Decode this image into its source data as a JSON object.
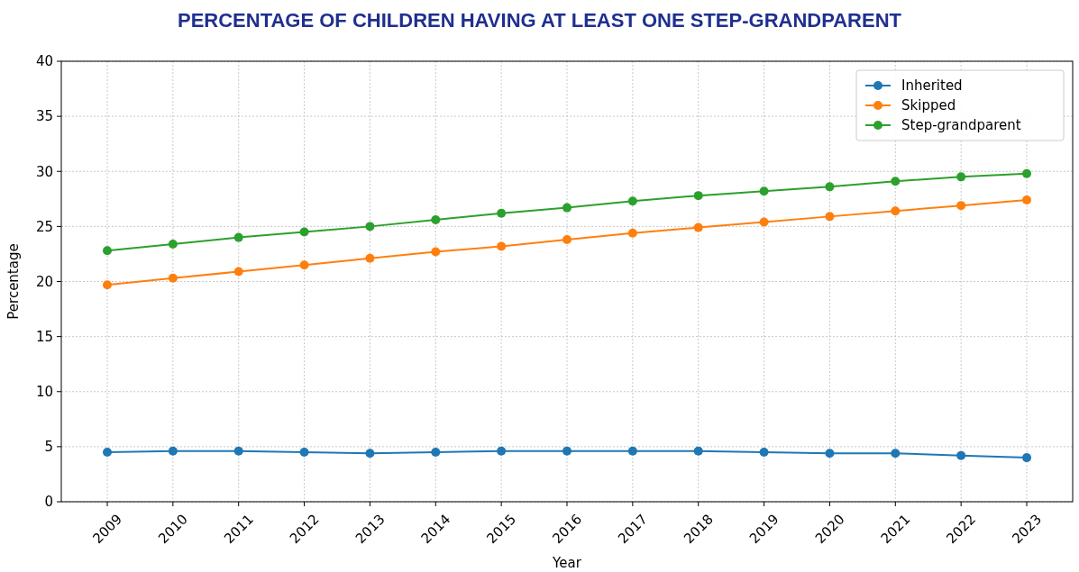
{
  "chart_data": {
    "type": "line",
    "title": "PERCENTAGE OF CHILDREN HAVING AT LEAST ONE STEP-GRANDPARENT",
    "xlabel": "Year",
    "ylabel": "Percentage",
    "categories": [
      "2009",
      "2010",
      "2011",
      "2012",
      "2013",
      "2014",
      "2015",
      "2016",
      "2017",
      "2018",
      "2019",
      "2020",
      "2021",
      "2022",
      "2023"
    ],
    "series": [
      {
        "name": "Inherited",
        "color": "#1f77b4",
        "values": [
          4.5,
          4.6,
          4.6,
          4.5,
          4.4,
          4.5,
          4.6,
          4.6,
          4.6,
          4.6,
          4.5,
          4.4,
          4.4,
          4.2,
          4.0
        ]
      },
      {
        "name": "Skipped",
        "color": "#ff7f0e",
        "values": [
          19.7,
          20.3,
          20.9,
          21.5,
          22.1,
          22.7,
          23.2,
          23.8,
          24.4,
          24.9,
          25.4,
          25.9,
          26.4,
          26.9,
          27.4
        ]
      },
      {
        "name": "Step-grandparent",
        "color": "#2ca02c",
        "values": [
          22.8,
          23.4,
          24.0,
          24.5,
          25.0,
          25.6,
          26.2,
          26.7,
          27.3,
          27.8,
          28.2,
          28.6,
          29.1,
          29.5,
          29.8
        ]
      }
    ],
    "ylim": [
      0,
      40
    ],
    "yticks": [
      0,
      5,
      10,
      15,
      20,
      25,
      30,
      35,
      40
    ],
    "grid": true,
    "legend": "top right",
    "marker": "circle",
    "line_style": "solid"
  }
}
